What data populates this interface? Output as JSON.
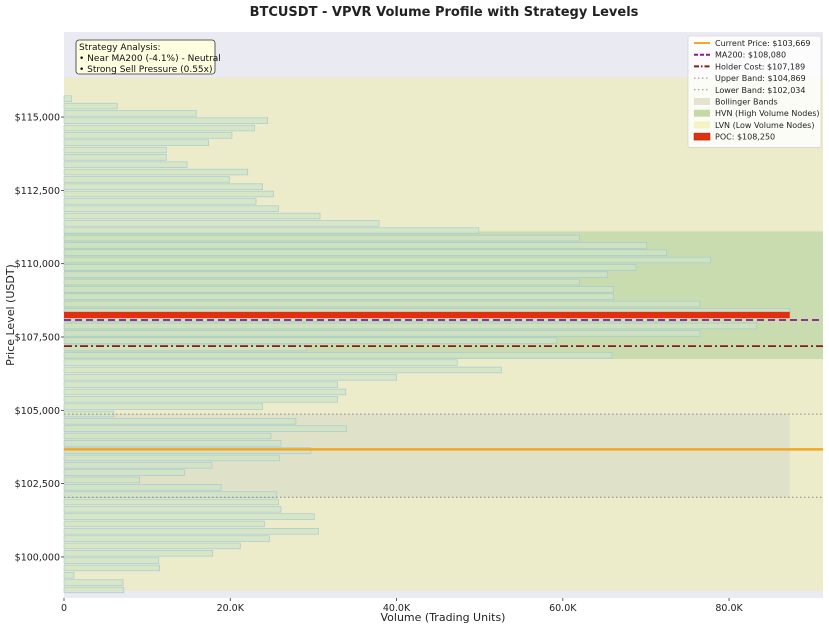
{
  "chart_data": {
    "type": "bar",
    "orientation": "horizontal",
    "title": "BTCUSDT - VPVR Volume Profile with Strategy Levels",
    "xlabel": "Volume (Trading Units)",
    "ylabel": "Price Level (USDT)",
    "xlim": [
      0,
      91300
    ],
    "ylim": [
      98600,
      117900
    ],
    "xticks": [
      0,
      20000,
      40000,
      60000,
      80000
    ],
    "xtick_labels": [
      "0",
      "20.0K",
      "40.0K",
      "60.0K",
      "80.0K"
    ],
    "yticks": [
      100000,
      102500,
      105000,
      107500,
      110000,
      112500,
      115000
    ],
    "ytick_labels": [
      "$100,000",
      "$102,500",
      "$105,000",
      "$107,500",
      "$110,000",
      "$112,500",
      "$115,000"
    ],
    "bin_size": 250,
    "bins": [
      {
        "price": 98875,
        "volume": 7200
      },
      {
        "price": 99125,
        "volume": 7100
      },
      {
        "price": 99375,
        "volume": 1200
      },
      {
        "price": 99625,
        "volume": 11500
      },
      {
        "price": 99875,
        "volume": 11400
      },
      {
        "price": 100125,
        "volume": 17900
      },
      {
        "price": 100375,
        "volume": 21200
      },
      {
        "price": 100625,
        "volume": 24700
      },
      {
        "price": 100875,
        "volume": 30600
      },
      {
        "price": 101125,
        "volume": 24100
      },
      {
        "price": 101375,
        "volume": 30100
      },
      {
        "price": 101625,
        "volume": 26100
      },
      {
        "price": 101875,
        "volume": 25800
      },
      {
        "price": 102125,
        "volume": 25600
      },
      {
        "price": 102375,
        "volume": 18900
      },
      {
        "price": 102625,
        "volume": 9100
      },
      {
        "price": 102875,
        "volume": 14500
      },
      {
        "price": 103125,
        "volume": 17800
      },
      {
        "price": 103375,
        "volume": 25900
      },
      {
        "price": 103625,
        "volume": 29700
      },
      {
        "price": 103875,
        "volume": 26100
      },
      {
        "price": 104125,
        "volume": 24900
      },
      {
        "price": 104375,
        "volume": 34000
      },
      {
        "price": 104625,
        "volume": 27900
      },
      {
        "price": 104875,
        "volume": 6000
      },
      {
        "price": 105125,
        "volume": 23900
      },
      {
        "price": 105375,
        "volume": 32900
      },
      {
        "price": 105625,
        "volume": 33900
      },
      {
        "price": 105875,
        "volume": 32900
      },
      {
        "price": 106125,
        "volume": 40000
      },
      {
        "price": 106375,
        "volume": 52600
      },
      {
        "price": 106625,
        "volume": 47300
      },
      {
        "price": 106875,
        "volume": 65900
      },
      {
        "price": 107125,
        "volume": 29200
      },
      {
        "price": 107375,
        "volume": 59300
      },
      {
        "price": 107625,
        "volume": 76500
      },
      {
        "price": 107875,
        "volume": 83300
      },
      {
        "price": 108125,
        "volume": 74600
      },
      {
        "price": 108375,
        "volume": 87300
      },
      {
        "price": 108625,
        "volume": 76500
      },
      {
        "price": 108875,
        "volume": 66100
      },
      {
        "price": 109125,
        "volume": 66100
      },
      {
        "price": 109375,
        "volume": 62000
      },
      {
        "price": 109625,
        "volume": 65400
      },
      {
        "price": 109875,
        "volume": 68800
      },
      {
        "price": 110125,
        "volume": 77800
      },
      {
        "price": 110375,
        "volume": 72500
      },
      {
        "price": 110625,
        "volume": 70100
      },
      {
        "price": 110875,
        "volume": 62000
      },
      {
        "price": 111125,
        "volume": 49900
      },
      {
        "price": 111375,
        "volume": 37900
      },
      {
        "price": 111625,
        "volume": 30800
      },
      {
        "price": 111875,
        "volume": 25800
      },
      {
        "price": 112125,
        "volume": 23100
      },
      {
        "price": 112375,
        "volume": 25200
      },
      {
        "price": 112625,
        "volume": 23900
      },
      {
        "price": 112875,
        "volume": 19900
      },
      {
        "price": 113125,
        "volume": 22100
      },
      {
        "price": 113375,
        "volume": 14800
      },
      {
        "price": 113625,
        "volume": 12300
      },
      {
        "price": 113875,
        "volume": 12300
      },
      {
        "price": 114125,
        "volume": 17400
      },
      {
        "price": 114375,
        "volume": 20200
      },
      {
        "price": 114625,
        "volume": 22900
      },
      {
        "price": 114875,
        "volume": 24500
      },
      {
        "price": 115125,
        "volume": 15900
      },
      {
        "price": 115375,
        "volume": 6400
      },
      {
        "price": 115625,
        "volume": 900
      }
    ],
    "poc": {
      "price": 108250,
      "volume": 87300
    },
    "hvn_range": [
      106750,
      111100
    ],
    "lvn_range": [
      111100,
      116350
    ],
    "bollinger_range": [
      102034,
      104869
    ],
    "levels": [
      {
        "key": "current",
        "label": "Current Price: $103,669",
        "price": 103669,
        "color": "#f5a623",
        "style": "solid"
      },
      {
        "key": "ma200",
        "label": "MA200: $108,080",
        "price": 108080,
        "color": "#8b1a8b",
        "style": "dashed"
      },
      {
        "key": "holder",
        "label": "Holder Cost: $107,189",
        "price": 107189,
        "color": "#8b1a1a",
        "style": "dashdot"
      },
      {
        "key": "upper",
        "label": "Upper Band: $104,869",
        "price": 104869,
        "color": "#888888",
        "style": "dotted"
      },
      {
        "key": "lower",
        "label": "Lower Band: $102,034",
        "price": 102034,
        "color": "#888888",
        "style": "dotted"
      }
    ],
    "legend_position": "top-right",
    "legend_entries": [
      {
        "label": "Current Price: $103,669",
        "kind": "line",
        "color": "#f5a623",
        "style": "solid"
      },
      {
        "label": "MA200: $108,080",
        "kind": "line",
        "color": "#8b1a8b",
        "style": "dashed"
      },
      {
        "label": "Holder Cost: $107,189",
        "kind": "line",
        "color": "#8b1a1a",
        "style": "dashdot"
      },
      {
        "label": "Upper Band: $104,869",
        "kind": "line",
        "color": "#888888",
        "style": "dotted"
      },
      {
        "label": "Lower Band: $102,034",
        "kind": "line",
        "color": "#888888",
        "style": "dotted"
      },
      {
        "label": "Bollinger Bands",
        "kind": "patch",
        "color": "#e3e3d0"
      },
      {
        "label": "HVN (High Volume Nodes)",
        "kind": "patch",
        "color": "#c5d9a8"
      },
      {
        "label": "LVN (Low Volume Nodes)",
        "kind": "patch",
        "color": "#f3f3c4"
      },
      {
        "label": "POC: $108,250",
        "kind": "patch",
        "color": "#e03010"
      }
    ],
    "annotation": {
      "title": "Strategy Analysis:",
      "lines": [
        "• Near MA200 (-4.1%) - Neutral",
        "• Strong Sell Pressure (0.55x)"
      ],
      "position": "top-left"
    }
  },
  "colors": {
    "figure_bg": "#ffffff",
    "axes_bg": "#eaeaf2",
    "lvn_zone": "#ecebca",
    "hvn_zone": "#c9dcb0",
    "bollinger_zone": "#dddfc8",
    "bar_fill": "#cfe4c6",
    "bar_edge": "#9ec5d5",
    "poc": "#e03010",
    "annotation_bg": "#fdfde0"
  }
}
